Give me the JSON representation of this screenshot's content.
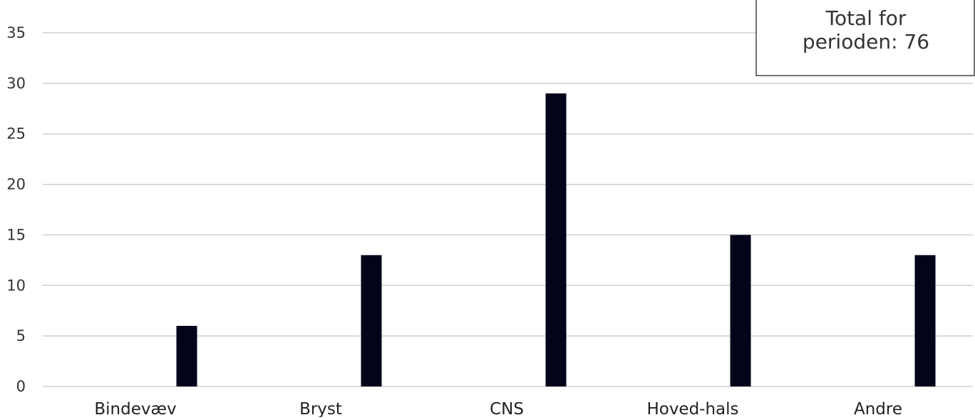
{
  "chart_data": {
    "type": "bar",
    "title": "",
    "categories": [
      "Bindevæv",
      "Bryst",
      "CNS",
      "Hoved-hals",
      "Andre"
    ],
    "values": [
      6,
      13,
      29,
      15,
      13
    ],
    "ylim": [
      0,
      35
    ],
    "yticks": [
      0,
      5,
      10,
      15,
      20,
      25,
      30,
      35
    ],
    "xlabel": "",
    "ylabel": "",
    "grid": true,
    "legend": "none",
    "bar_color": "#03031a",
    "annotation": {
      "lines": [
        "Total for",
        "perioden: 76"
      ],
      "placement": "top-right"
    }
  }
}
